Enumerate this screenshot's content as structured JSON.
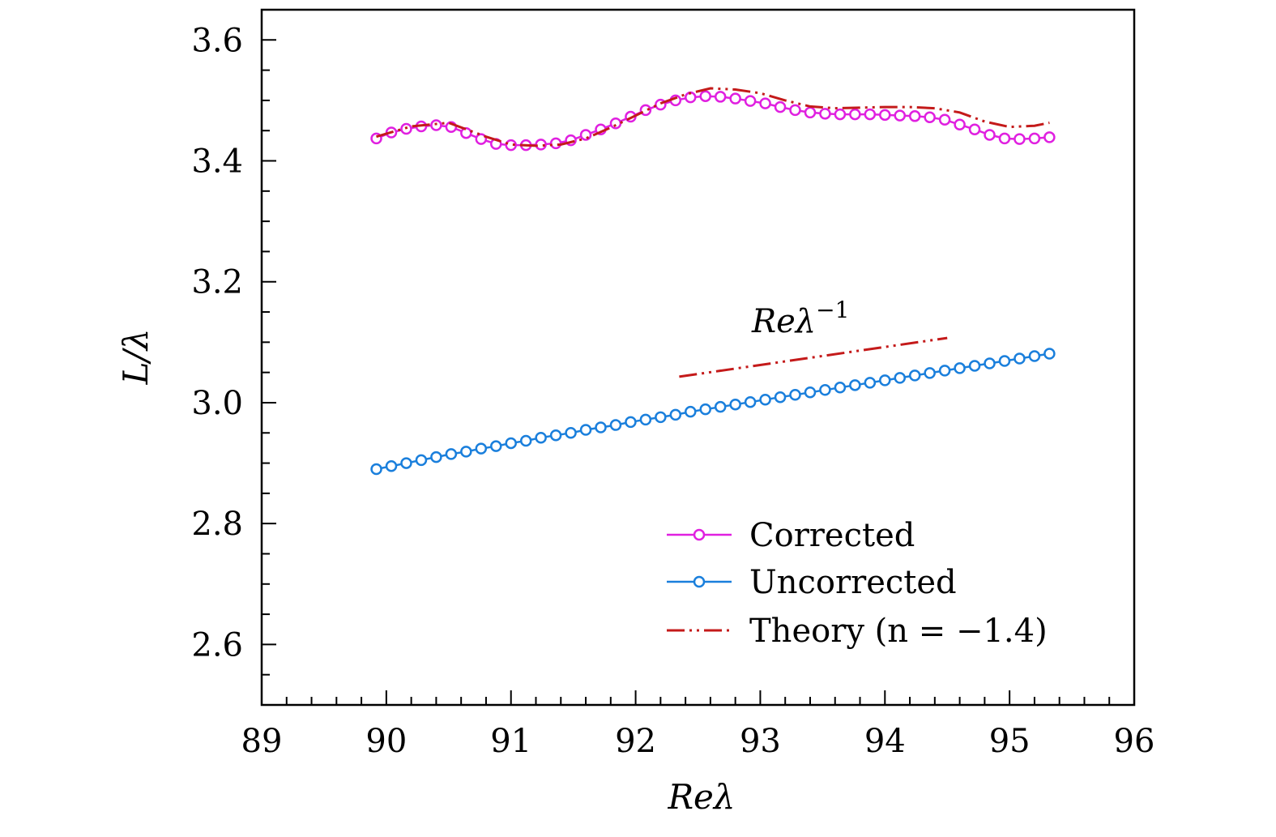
{
  "chart_data": {
    "type": "line",
    "xlabel": "Reλ",
    "ylabel": "L/λ",
    "xlim": [
      89,
      96
    ],
    "ylim": [
      2.5,
      3.65
    ],
    "xticks": [
      89,
      90,
      91,
      92,
      93,
      94,
      95,
      96
    ],
    "yticks": [
      2.6,
      2.8,
      3.0,
      3.2,
      3.4,
      3.6
    ],
    "xtick_labels": [
      "89",
      "90",
      "91",
      "92",
      "93",
      "94",
      "95",
      "96"
    ],
    "ytick_labels": [
      "2.6",
      "2.8",
      "3.0",
      "3.2",
      "3.4",
      "3.6"
    ],
    "annotation": {
      "text": "Reλ",
      "superscript": "−1"
    },
    "legend_position": "bottom-right",
    "colors": {
      "corrected": "#e020e0",
      "uncorrected": "#1a7fdc",
      "theory": "#c41a1a"
    },
    "series": [
      {
        "name": "Corrected",
        "style": "line-circle",
        "x": [
          89.92,
          90.04,
          90.16,
          90.28,
          90.4,
          90.52,
          90.64,
          90.76,
          90.88,
          91.0,
          91.12,
          91.24,
          91.36,
          91.48,
          91.6,
          91.72,
          91.84,
          91.96,
          92.08,
          92.2,
          92.32,
          92.44,
          92.56,
          92.68,
          92.8,
          92.92,
          93.04,
          93.16,
          93.28,
          93.4,
          93.52,
          93.64,
          93.76,
          93.88,
          94.0,
          94.12,
          94.24,
          94.36,
          94.48,
          94.6,
          94.72,
          94.84,
          94.96,
          95.08,
          95.2,
          95.32
        ],
        "y": [
          3.437,
          3.447,
          3.453,
          3.457,
          3.459,
          3.456,
          3.446,
          3.436,
          3.428,
          3.426,
          3.426,
          3.427,
          3.429,
          3.434,
          3.443,
          3.452,
          3.462,
          3.473,
          3.484,
          3.493,
          3.5,
          3.505,
          3.507,
          3.506,
          3.503,
          3.499,
          3.495,
          3.489,
          3.484,
          3.48,
          3.478,
          3.477,
          3.477,
          3.477,
          3.476,
          3.475,
          3.474,
          3.472,
          3.468,
          3.46,
          3.452,
          3.443,
          3.437,
          3.436,
          3.437,
          3.439
        ]
      },
      {
        "name": "Uncorrected",
        "style": "line-circle",
        "x": [
          89.92,
          90.04,
          90.16,
          90.28,
          90.4,
          90.52,
          90.64,
          90.76,
          90.88,
          91.0,
          91.12,
          91.24,
          91.36,
          91.48,
          91.6,
          91.72,
          91.84,
          91.96,
          92.08,
          92.2,
          92.32,
          92.44,
          92.56,
          92.68,
          92.8,
          92.92,
          93.04,
          93.16,
          93.28,
          93.4,
          93.52,
          93.64,
          93.76,
          93.88,
          94.0,
          94.12,
          94.24,
          94.36,
          94.48,
          94.6,
          94.72,
          94.84,
          94.96,
          95.08,
          95.2,
          95.32
        ],
        "y": [
          2.89,
          2.895,
          2.9,
          2.905,
          2.91,
          2.915,
          2.919,
          2.924,
          2.928,
          2.933,
          2.937,
          2.942,
          2.946,
          2.95,
          2.955,
          2.959,
          2.963,
          2.968,
          2.972,
          2.976,
          2.98,
          2.985,
          2.989,
          2.993,
          2.997,
          3.001,
          3.005,
          3.009,
          3.013,
          3.017,
          3.021,
          3.025,
          3.029,
          3.033,
          3.037,
          3.041,
          3.045,
          3.049,
          3.053,
          3.057,
          3.061,
          3.065,
          3.069,
          3.073,
          3.077,
          3.081
        ]
      },
      {
        "name": "Theory (n = −1.4)",
        "style": "dash-dot-dot",
        "x": [
          89.92,
          90.2,
          90.5,
          90.8,
          91.0,
          91.2,
          91.4,
          91.6,
          91.8,
          92.0,
          92.2,
          92.4,
          92.6,
          92.8,
          93.0,
          93.2,
          93.4,
          93.6,
          93.8,
          94.0,
          94.2,
          94.4,
          94.6,
          94.8,
          95.0,
          95.2,
          95.32
        ],
        "y": [
          3.44,
          3.457,
          3.463,
          3.44,
          3.427,
          3.425,
          3.427,
          3.437,
          3.455,
          3.475,
          3.495,
          3.51,
          3.52,
          3.518,
          3.512,
          3.5,
          3.49,
          3.487,
          3.488,
          3.489,
          3.489,
          3.487,
          3.48,
          3.465,
          3.456,
          3.458,
          3.463
        ]
      },
      {
        "name": "",
        "style": "dash-dot-dot",
        "x": [
          92.35,
          94.5
        ],
        "y": [
          3.043,
          3.107
        ]
      }
    ]
  }
}
